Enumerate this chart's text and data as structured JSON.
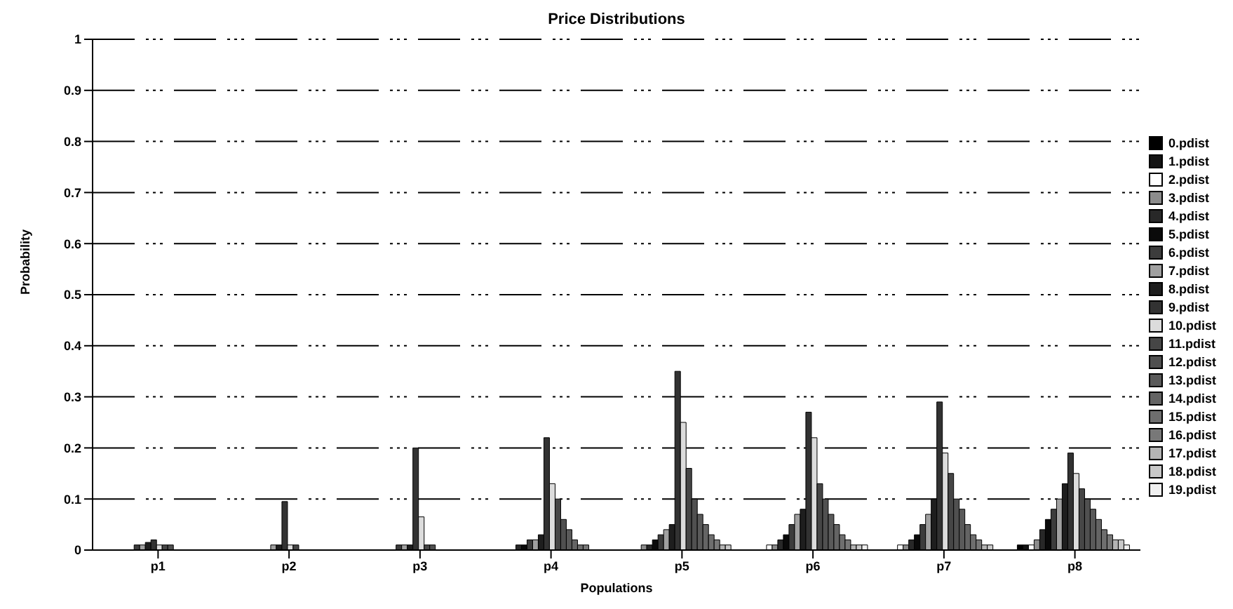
{
  "chart_data": {
    "type": "bar",
    "title": "Price Distributions",
    "xlabel": "Populations",
    "ylabel": "Probability",
    "categories": [
      "p1",
      "p2",
      "p3",
      "p4",
      "p5",
      "p6",
      "p7",
      "p8"
    ],
    "ylim": [
      0,
      1
    ],
    "yticks": [
      0,
      0.1,
      0.2,
      0.3,
      0.4,
      0.5,
      0.6,
      0.7,
      0.8,
      0.9,
      1
    ],
    "grid": "y",
    "legend": "right",
    "series": [
      {
        "name": "0.pdist",
        "color": "#000000",
        "values": [
          0,
          0,
          0,
          0,
          0,
          0,
          0,
          0.01
        ]
      },
      {
        "name": "1.pdist",
        "color": "#141414",
        "values": [
          0,
          0,
          0,
          0,
          0,
          0,
          0,
          0.01
        ]
      },
      {
        "name": "2.pdist",
        "color": "#ffffff",
        "values": [
          0,
          0,
          0,
          0,
          0,
          0.01,
          0.01,
          0.01
        ]
      },
      {
        "name": "3.pdist",
        "color": "#8c8c8c",
        "values": [
          0,
          0,
          0,
          0,
          0.01,
          0.01,
          0.01,
          0.02
        ]
      },
      {
        "name": "4.pdist",
        "color": "#282828",
        "values": [
          0,
          0,
          0,
          0.01,
          0.01,
          0.02,
          0.02,
          0.04
        ]
      },
      {
        "name": "5.pdist",
        "color": "#0a0a0a",
        "values": [
          0,
          0,
          0,
          0.01,
          0.02,
          0.03,
          0.03,
          0.06
        ]
      },
      {
        "name": "6.pdist",
        "color": "#3c3c3c",
        "values": [
          0.01,
          0,
          0.01,
          0.02,
          0.03,
          0.05,
          0.05,
          0.08
        ]
      },
      {
        "name": "7.pdist",
        "color": "#a0a0a0",
        "values": [
          0.01,
          0.01,
          0.01,
          0.02,
          0.04,
          0.07,
          0.07,
          0.1
        ]
      },
      {
        "name": "8.pdist",
        "color": "#1e1e1e",
        "values": [
          0.015,
          0.01,
          0.01,
          0.03,
          0.05,
          0.08,
          0.1,
          0.13
        ]
      },
      {
        "name": "9.pdist",
        "color": "#323232",
        "values": [
          0.02,
          0.095,
          0.2,
          0.22,
          0.35,
          0.27,
          0.29,
          0.19
        ]
      },
      {
        "name": "10.pdist",
        "color": "#dcdcdc",
        "values": [
          0.01,
          0.01,
          0.065,
          0.13,
          0.25,
          0.22,
          0.19,
          0.15
        ]
      },
      {
        "name": "11.pdist",
        "color": "#464646",
        "values": [
          0.01,
          0.01,
          0.01,
          0.1,
          0.16,
          0.13,
          0.15,
          0.12
        ]
      },
      {
        "name": "12.pdist",
        "color": "#505050",
        "values": [
          0.01,
          0,
          0.01,
          0.06,
          0.1,
          0.1,
          0.1,
          0.1
        ]
      },
      {
        "name": "13.pdist",
        "color": "#5a5a5a",
        "values": [
          0,
          0,
          0,
          0.04,
          0.07,
          0.07,
          0.08,
          0.08
        ]
      },
      {
        "name": "14.pdist",
        "color": "#646464",
        "values": [
          0,
          0,
          0,
          0.02,
          0.05,
          0.05,
          0.05,
          0.06
        ]
      },
      {
        "name": "15.pdist",
        "color": "#6e6e6e",
        "values": [
          0,
          0,
          0,
          0.01,
          0.03,
          0.03,
          0.03,
          0.04
        ]
      },
      {
        "name": "16.pdist",
        "color": "#787878",
        "values": [
          0,
          0,
          0,
          0.01,
          0.02,
          0.02,
          0.02,
          0.03
        ]
      },
      {
        "name": "17.pdist",
        "color": "#b4b4b4",
        "values": [
          0,
          0,
          0,
          0,
          0.01,
          0.01,
          0.01,
          0.02
        ]
      },
      {
        "name": "18.pdist",
        "color": "#c8c8c8",
        "values": [
          0,
          0,
          0,
          0,
          0.01,
          0.01,
          0.01,
          0.02
        ]
      },
      {
        "name": "19.pdist",
        "color": "#f0f0f0",
        "values": [
          0,
          0,
          0,
          0,
          0,
          0.01,
          0,
          0.01
        ]
      }
    ]
  }
}
